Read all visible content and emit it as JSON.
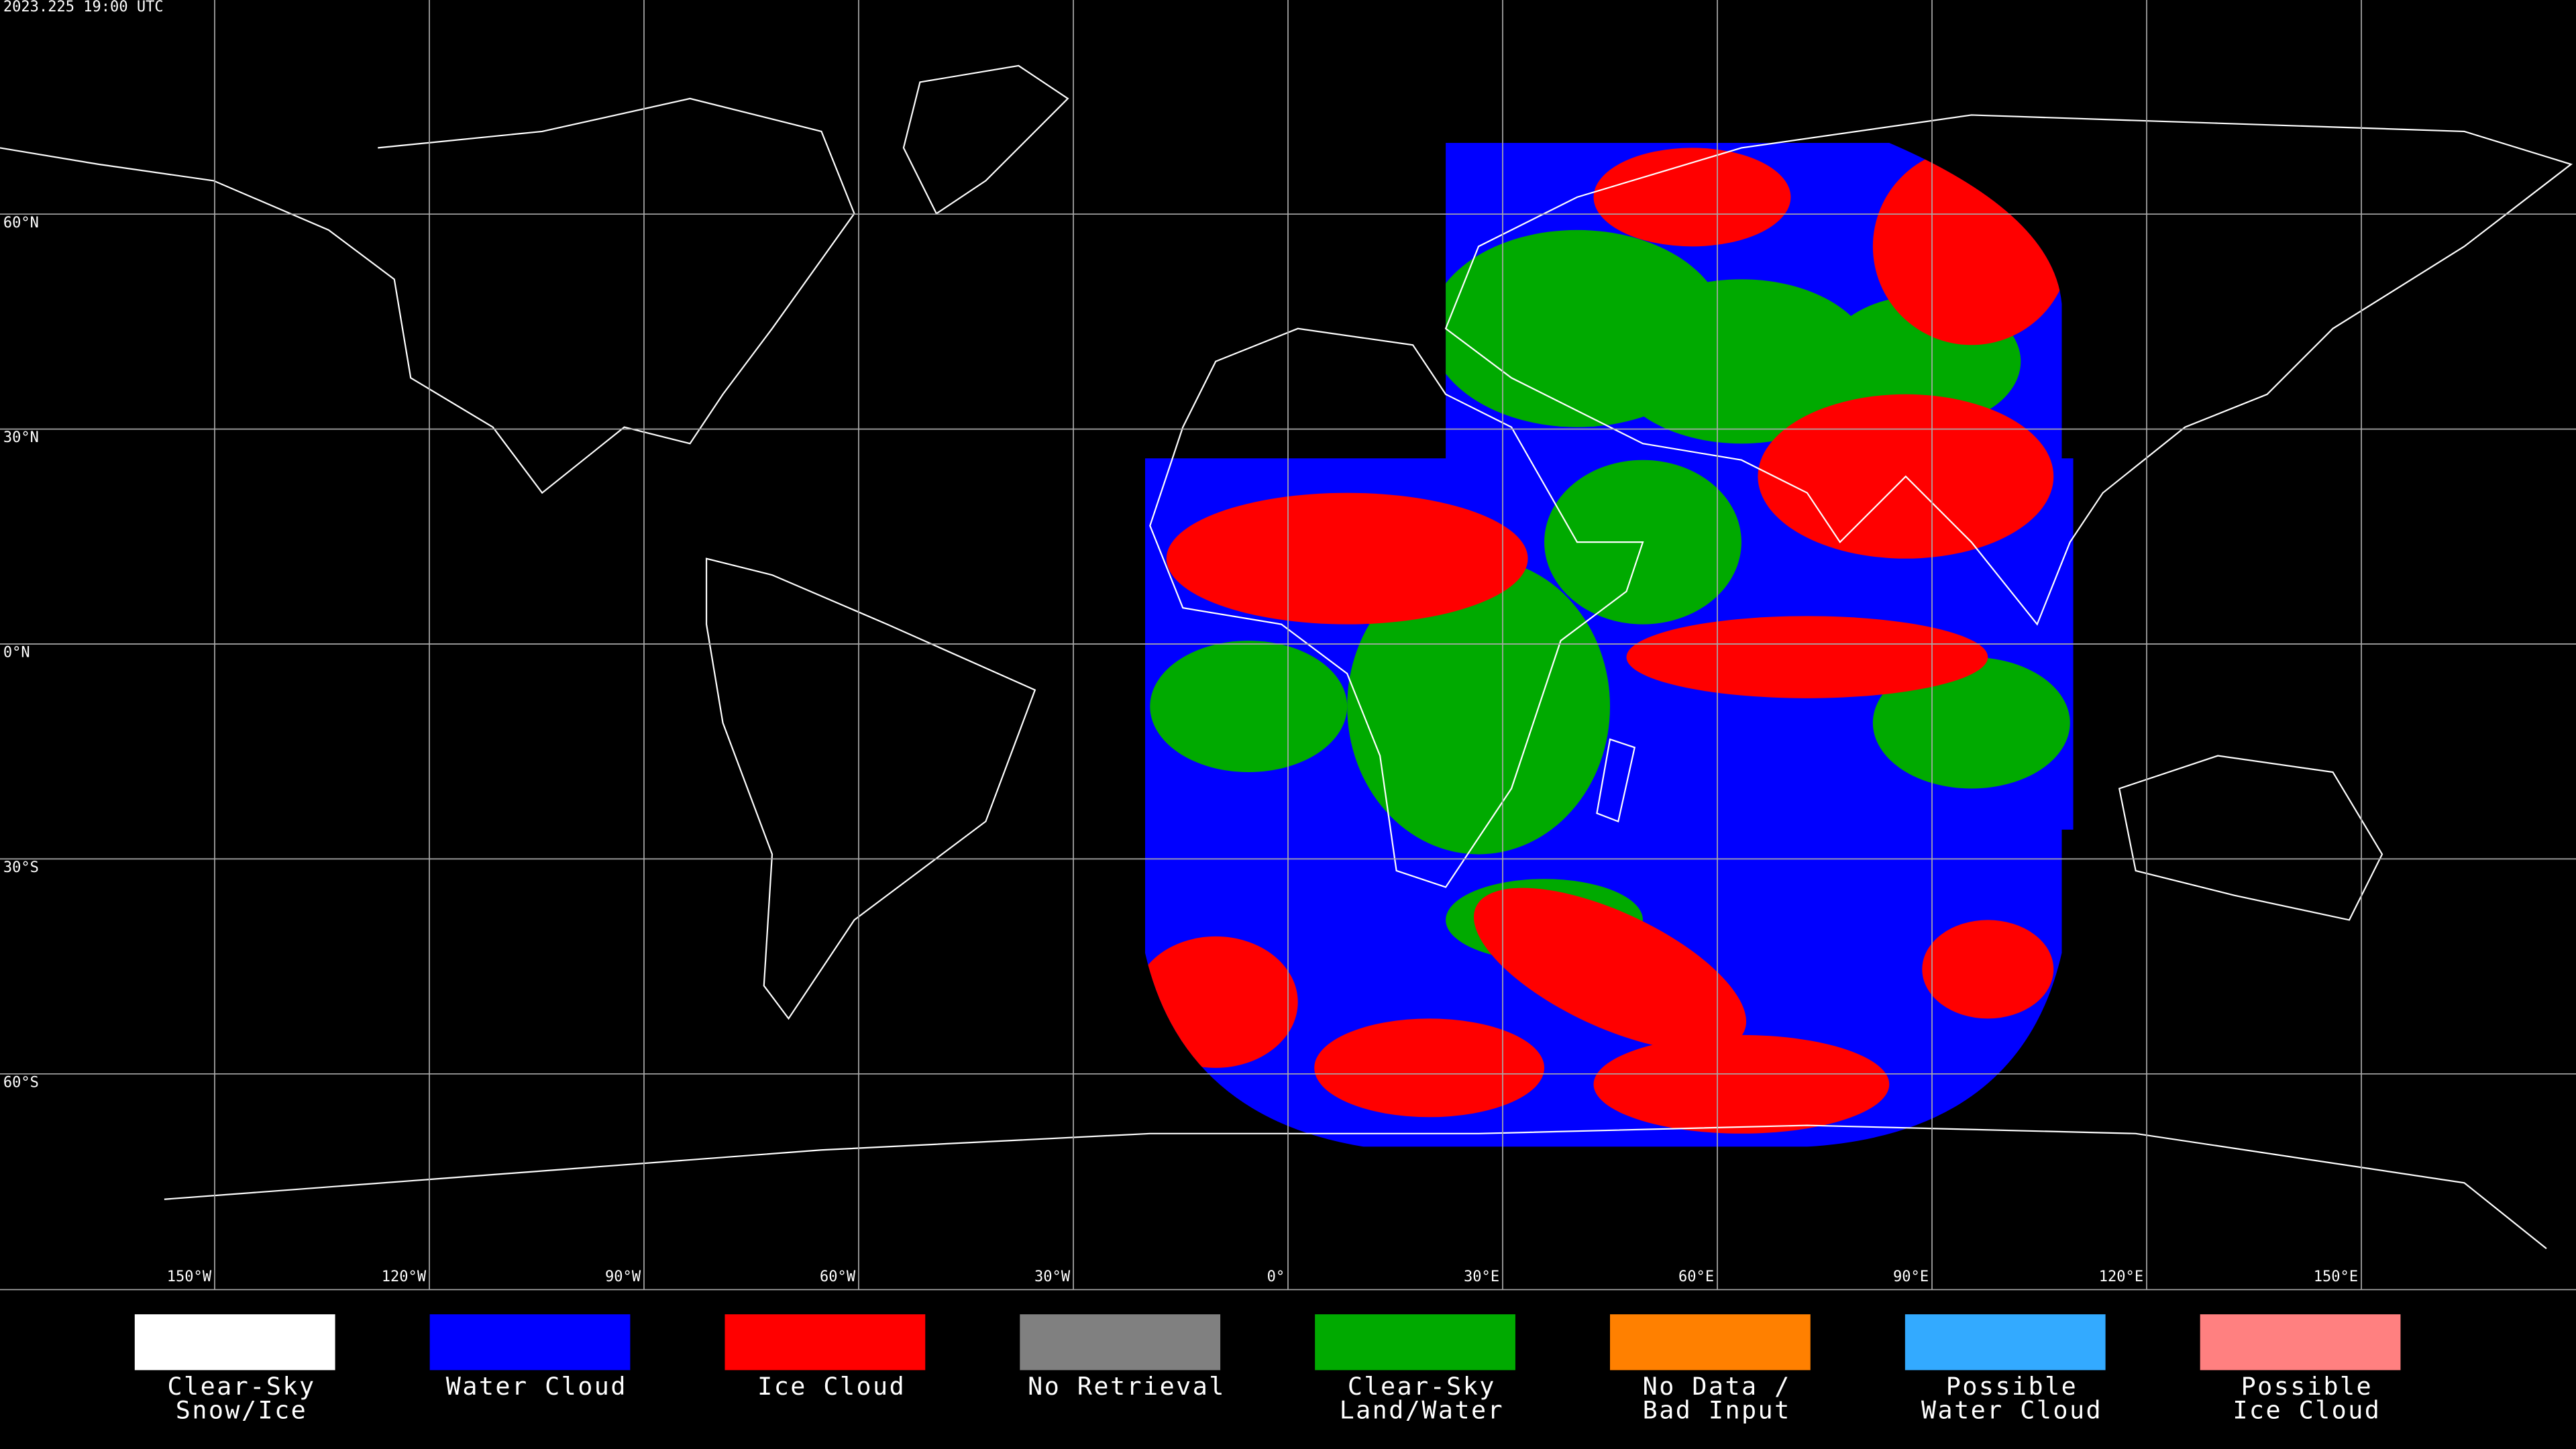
{
  "map": {
    "timestamp": "2023.225 19:00 UTC",
    "lat_labels": [
      "60°N",
      "30°N",
      "0°N",
      "30°S",
      "60°S"
    ],
    "lon_labels": [
      "150°W",
      "120°W",
      "90°W",
      "60°W",
      "30°W",
      "0°",
      "30°E",
      "60°E",
      "90°E",
      "120°E",
      "150°E"
    ],
    "legend": [
      {
        "color": "#ffffff",
        "label": [
          "Clear-Sky",
          "Snow/Ice"
        ]
      },
      {
        "color": "#0000ff",
        "label": [
          "Water Cloud"
        ]
      },
      {
        "color": "#ff0000",
        "label": [
          "Ice Cloud"
        ]
      },
      {
        "color": "#808080",
        "label": [
          "No Retrieval"
        ]
      },
      {
        "color": "#00aa00",
        "label": [
          "Clear-Sky",
          "Land/Water"
        ]
      },
      {
        "color": "#ff8000",
        "label": [
          "No Data /",
          "Bad Input"
        ]
      },
      {
        "color": "#33aaff",
        "label": [
          "Possible",
          "Water Cloud"
        ]
      },
      {
        "color": "#ff8080",
        "label": [
          "Possible",
          "Ice Cloud"
        ]
      }
    ]
  }
}
